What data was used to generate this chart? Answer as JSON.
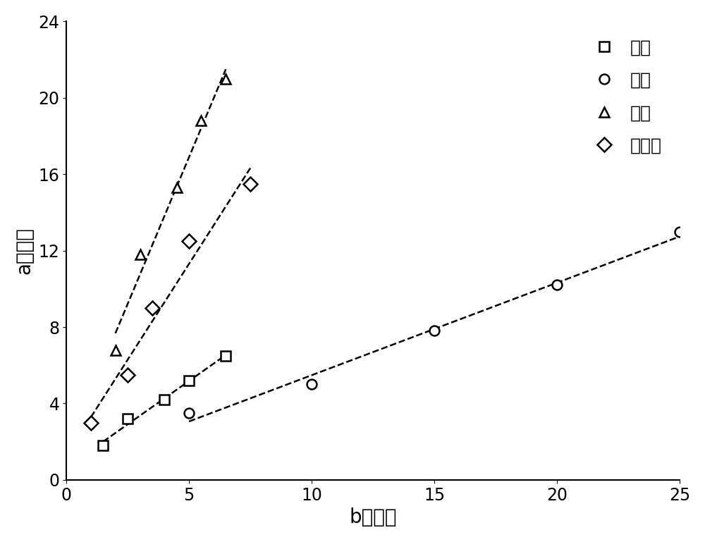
{
  "title": "",
  "xlabel": "b轴响应",
  "ylabel": "a轴响应",
  "xlim": [
    0,
    25
  ],
  "ylim": [
    0,
    24
  ],
  "xticks": [
    0,
    5,
    10,
    15,
    20,
    25
  ],
  "yticks": [
    0,
    4,
    8,
    12,
    16,
    20,
    24
  ],
  "series": [
    {
      "name": "丙酮",
      "marker": "s",
      "x": [
        1.5,
        2.5,
        4.0,
        5.0,
        6.5
      ],
      "y": [
        1.8,
        3.2,
        4.2,
        5.2,
        6.5
      ]
    },
    {
      "name": "乙醇",
      "marker": "o",
      "x": [
        5.0,
        10.0,
        15.0,
        20.0,
        25.0
      ],
      "y": [
        3.5,
        5.0,
        7.8,
        10.2,
        13.0
      ]
    },
    {
      "name": "甲醇",
      "marker": "^",
      "x": [
        2.0,
        3.0,
        4.5,
        5.5,
        6.5
      ],
      "y": [
        6.8,
        11.8,
        15.3,
        18.8,
        21.0
      ]
    },
    {
      "name": "异丙醇",
      "marker": "D",
      "x": [
        1.0,
        2.5,
        3.5,
        5.0,
        7.5
      ],
      "y": [
        3.0,
        5.5,
        9.0,
        12.5,
        15.5
      ]
    }
  ],
  "color": "black",
  "markersize": 10,
  "linewidth": 1.8,
  "legend_fontsize": 18,
  "axis_label_fontsize": 20,
  "tick_fontsize": 17,
  "background_color": "#ffffff"
}
